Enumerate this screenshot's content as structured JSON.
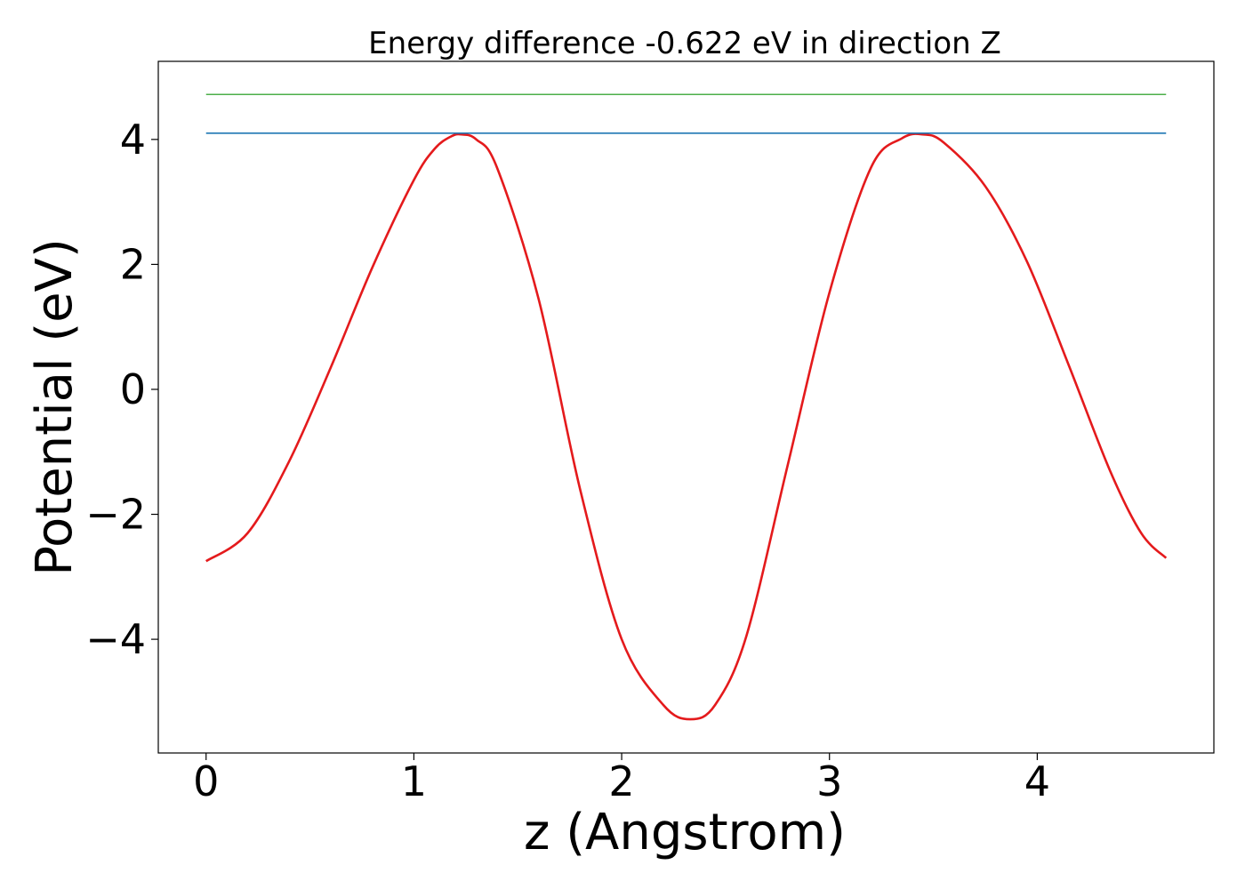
{
  "chart_data": {
    "type": "line",
    "title": "Energy difference -0.622 eV in direction Z",
    "xlabel": "z (Angstrom)",
    "ylabel": "Potential (eV)",
    "xlim": [
      -0.23,
      4.85
    ],
    "ylim": [
      -5.82,
      5.25
    ],
    "xticks": [
      0,
      1,
      2,
      3,
      4
    ],
    "xtick_labels": [
      "0",
      "1",
      "2",
      "3",
      "4"
    ],
    "yticks": [
      -4,
      -2,
      0,
      2,
      4
    ],
    "ytick_labels": [
      "−4",
      "−2",
      "0",
      "2",
      "4"
    ],
    "grid": false,
    "series": [
      {
        "color": "#e41a1c",
        "x": [
          0,
          0.2,
          0.4,
          0.6,
          0.8,
          1.0,
          1.1,
          1.18,
          1.23,
          1.3,
          1.4,
          1.6,
          1.8,
          2.0,
          2.2,
          2.33,
          2.45,
          2.6,
          2.8,
          3.0,
          3.2,
          3.35,
          3.45,
          3.55,
          3.75,
          3.95,
          4.15,
          4.35,
          4.5,
          4.62
        ],
        "y": [
          -2.75,
          -2.3,
          -1.15,
          0.35,
          1.95,
          3.35,
          3.85,
          4.05,
          4.08,
          4.0,
          3.55,
          1.45,
          -1.6,
          -4.0,
          -5.05,
          -5.28,
          -5.05,
          -3.95,
          -1.2,
          1.55,
          3.55,
          4.02,
          4.08,
          3.95,
          3.25,
          2.05,
          0.4,
          -1.3,
          -2.3,
          -2.7
        ]
      },
      {
        "color": "#1f77b4",
        "x": [
          0,
          4.62
        ],
        "y": [
          4.1,
          4.1
        ]
      },
      {
        "color": "#4daf4a",
        "x": [
          0,
          4.62
        ],
        "y": [
          4.72,
          4.72
        ]
      }
    ]
  }
}
